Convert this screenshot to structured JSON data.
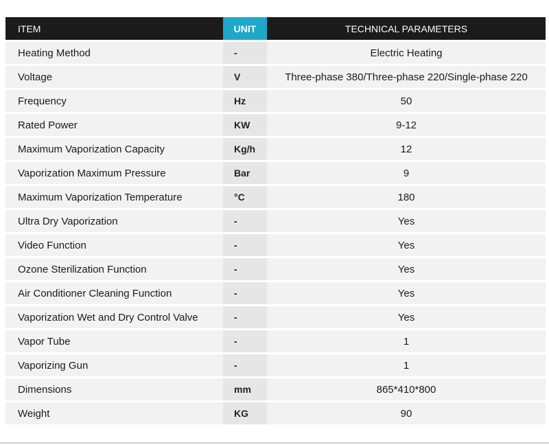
{
  "header": {
    "item": "ITEM",
    "unit": "UNIT",
    "parameters": "TECHNICAL PARAMETERS"
  },
  "rows": [
    {
      "item": "Heating Method",
      "unit": "-",
      "value": "Electric Heating"
    },
    {
      "item": "Voltage",
      "unit": "V",
      "value": "Three-phase 380/Three-phase 220/Single-phase 220"
    },
    {
      "item": "Frequency",
      "unit": "Hz",
      "value": "50"
    },
    {
      "item": "Rated Power",
      "unit": "KW",
      "value": "9-12"
    },
    {
      "item": "Maximum Vaporization Capacity",
      "unit": "Kg/h",
      "value": "12"
    },
    {
      "item": "Vaporization Maximum Pressure",
      "unit": "Bar",
      "value": "9"
    },
    {
      "item": "Maximum Vaporization Temperature",
      "unit": "°C",
      "value": "180"
    },
    {
      "item": "Ultra Dry Vaporization",
      "unit": "-",
      "value": "Yes"
    },
    {
      "item": "Video Function",
      "unit": "-",
      "value": "Yes"
    },
    {
      "item": "Ozone Sterilization Function",
      "unit": "-",
      "value": "Yes"
    },
    {
      "item": "Air Conditioner Cleaning Function",
      "unit": "-",
      "value": "Yes"
    },
    {
      "item": "Vaporization Wet and Dry Control Valve",
      "unit": "-",
      "value": "Yes"
    },
    {
      "item": "Vapor Tube",
      "unit": "-",
      "value": "1"
    },
    {
      "item": "Vaporizing Gun",
      "unit": "-",
      "value": "1"
    },
    {
      "item": "Dimensions",
      "unit": "mm",
      "value": "865*410*800"
    },
    {
      "item": "Weight",
      "unit": "KG",
      "value": "90"
    }
  ],
  "colors": {
    "header_bg": "#1b1b1b",
    "unit_header_bg": "#1ea7c9",
    "row_bg": "#f2f2f2",
    "unit_col_bg": "#e6e6e6"
  }
}
